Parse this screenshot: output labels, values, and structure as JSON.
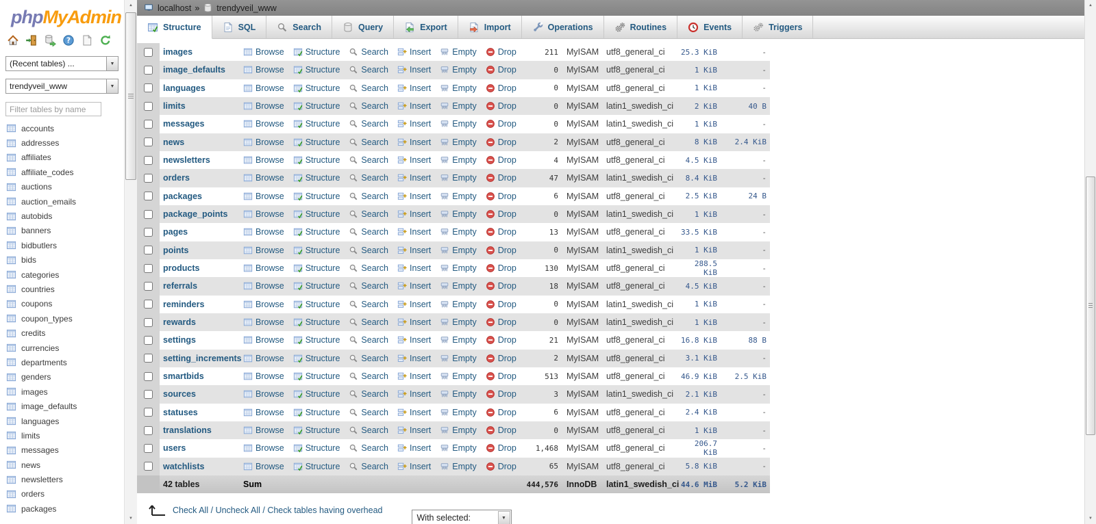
{
  "sidebar": {
    "logo_php": "php",
    "logo_myadmin": "MyAdmin",
    "nav_icons": [
      {
        "icon": "home-icon"
      },
      {
        "icon": "logout-icon"
      },
      {
        "icon": "sql-window-icon"
      },
      {
        "icon": "help-icon"
      },
      {
        "icon": "docs-icon"
      },
      {
        "icon": "reload-icon"
      }
    ],
    "recent_tables_select": "(Recent tables) ...",
    "database_select": "trendyveil_www",
    "filter_placeholder": "Filter tables by name",
    "tables": [
      "accounts",
      "addresses",
      "affiliates",
      "affiliate_codes",
      "auctions",
      "auction_emails",
      "autobids",
      "banners",
      "bidbutlers",
      "bids",
      "categories",
      "countries",
      "coupons",
      "coupon_types",
      "credits",
      "currencies",
      "departments",
      "genders",
      "images",
      "image_defaults",
      "languages",
      "limits",
      "messages",
      "news",
      "newsletters",
      "orders",
      "packages"
    ]
  },
  "header": {
    "breadcrumb": {
      "server": "localhost",
      "separator": "»",
      "database": "trendyveil_www"
    },
    "tabs": [
      {
        "label": "Structure",
        "icon": "structure-icon",
        "active": true
      },
      {
        "label": "SQL",
        "icon": "sql-icon"
      },
      {
        "label": "Search",
        "icon": "search-icon"
      },
      {
        "label": "Query",
        "icon": "database-icon"
      },
      {
        "label": "Export",
        "icon": "export-icon"
      },
      {
        "label": "Import",
        "icon": "import-icon"
      },
      {
        "label": "Operations",
        "icon": "wrench-icon"
      },
      {
        "label": "Routines",
        "icon": "gears-icon"
      },
      {
        "label": "Events",
        "icon": "clock-icon"
      },
      {
        "label": "Triggers",
        "icon": "triggers-icon"
      }
    ]
  },
  "main": {
    "actions": [
      {
        "label": "Browse",
        "icon": "browse-icon"
      },
      {
        "label": "Structure",
        "icon": "structure-icon"
      },
      {
        "label": "Search",
        "icon": "search-icon"
      },
      {
        "label": "Insert",
        "icon": "insert-icon"
      },
      {
        "label": "Empty",
        "icon": "empty-icon"
      },
      {
        "label": "Drop",
        "icon": "drop-icon"
      }
    ],
    "table": {
      "rows": [
        {
          "name": "images",
          "rows": "211",
          "type": "MyISAM",
          "collation": "utf8_general_ci",
          "size": "25.3 KiB",
          "overhead": "-"
        },
        {
          "name": "image_defaults",
          "rows": "0",
          "type": "MyISAM",
          "collation": "utf8_general_ci",
          "size": "1 KiB",
          "overhead": "-"
        },
        {
          "name": "languages",
          "rows": "0",
          "type": "MyISAM",
          "collation": "utf8_general_ci",
          "size": "1 KiB",
          "overhead": "-"
        },
        {
          "name": "limits",
          "rows": "0",
          "type": "MyISAM",
          "collation": "latin1_swedish_ci",
          "size": "2 KiB",
          "overhead": "40 B"
        },
        {
          "name": "messages",
          "rows": "0",
          "type": "MyISAM",
          "collation": "latin1_swedish_ci",
          "size": "1 KiB",
          "overhead": "-"
        },
        {
          "name": "news",
          "rows": "2",
          "type": "MyISAM",
          "collation": "utf8_general_ci",
          "size": "8 KiB",
          "overhead": "2.4 KiB"
        },
        {
          "name": "newsletters",
          "rows": "4",
          "type": "MyISAM",
          "collation": "utf8_general_ci",
          "size": "4.5 KiB",
          "overhead": "-"
        },
        {
          "name": "orders",
          "rows": "47",
          "type": "MyISAM",
          "collation": "latin1_swedish_ci",
          "size": "8.4 KiB",
          "overhead": "-"
        },
        {
          "name": "packages",
          "rows": "6",
          "type": "MyISAM",
          "collation": "utf8_general_ci",
          "size": "2.5 KiB",
          "overhead": "24 B"
        },
        {
          "name": "package_points",
          "rows": "0",
          "type": "MyISAM",
          "collation": "latin1_swedish_ci",
          "size": "1 KiB",
          "overhead": "-"
        },
        {
          "name": "pages",
          "rows": "13",
          "type": "MyISAM",
          "collation": "utf8_general_ci",
          "size": "33.5 KiB",
          "overhead": "-"
        },
        {
          "name": "points",
          "rows": "0",
          "type": "MyISAM",
          "collation": "latin1_swedish_ci",
          "size": "1 KiB",
          "overhead": "-"
        },
        {
          "name": "products",
          "rows": "130",
          "type": "MyISAM",
          "collation": "utf8_general_ci",
          "size": "288.5 KiB",
          "overhead": "-"
        },
        {
          "name": "referrals",
          "rows": "18",
          "type": "MyISAM",
          "collation": "utf8_general_ci",
          "size": "4.5 KiB",
          "overhead": "-"
        },
        {
          "name": "reminders",
          "rows": "0",
          "type": "MyISAM",
          "collation": "latin1_swedish_ci",
          "size": "1 KiB",
          "overhead": "-"
        },
        {
          "name": "rewards",
          "rows": "0",
          "type": "MyISAM",
          "collation": "latin1_swedish_ci",
          "size": "1 KiB",
          "overhead": "-"
        },
        {
          "name": "settings",
          "rows": "21",
          "type": "MyISAM",
          "collation": "utf8_general_ci",
          "size": "16.8 KiB",
          "overhead": "88 B"
        },
        {
          "name": "setting_increments",
          "rows": "2",
          "type": "MyISAM",
          "collation": "utf8_general_ci",
          "size": "3.1 KiB",
          "overhead": "-"
        },
        {
          "name": "smartbids",
          "rows": "513",
          "type": "MyISAM",
          "collation": "utf8_general_ci",
          "size": "46.9 KiB",
          "overhead": "2.5 KiB"
        },
        {
          "name": "sources",
          "rows": "3",
          "type": "MyISAM",
          "collation": "latin1_swedish_ci",
          "size": "2.1 KiB",
          "overhead": "-"
        },
        {
          "name": "statuses",
          "rows": "6",
          "type": "MyISAM",
          "collation": "utf8_general_ci",
          "size": "2.4 KiB",
          "overhead": "-"
        },
        {
          "name": "translations",
          "rows": "0",
          "type": "MyISAM",
          "collation": "utf8_general_ci",
          "size": "1 KiB",
          "overhead": "-"
        },
        {
          "name": "users",
          "rows": "1,468",
          "type": "MyISAM",
          "collation": "utf8_general_ci",
          "size": "206.7 KiB",
          "overhead": "-"
        },
        {
          "name": "watchlists",
          "rows": "65",
          "type": "MyISAM",
          "collation": "utf8_general_ci",
          "size": "5.8 KiB",
          "overhead": "-"
        }
      ],
      "sum": {
        "label": "42 tables",
        "action_label": "Sum",
        "rows": "444,576",
        "type": "InnoDB",
        "collation": "latin1_swedish_ci",
        "size": "44.6 MiB",
        "overhead": "5.2 KiB"
      }
    },
    "footer": {
      "check_all": "Check All",
      "separator": "/",
      "uncheck_all": "Uncheck All",
      "check_overhead": "Check tables having overhead",
      "with_selected": "With selected:"
    }
  },
  "colors": {
    "link_blue": "#235a81",
    "logo_php": "#777bb3",
    "logo_orange": "#f89c0e",
    "breadcrumb_bar": "#888888",
    "row_even": "#e3e3e3",
    "checkbox_column": "#d5d5d5",
    "sum_row": "#cbcbcb",
    "mono_blue": "#35588c",
    "drop_red": "#d9534f"
  }
}
